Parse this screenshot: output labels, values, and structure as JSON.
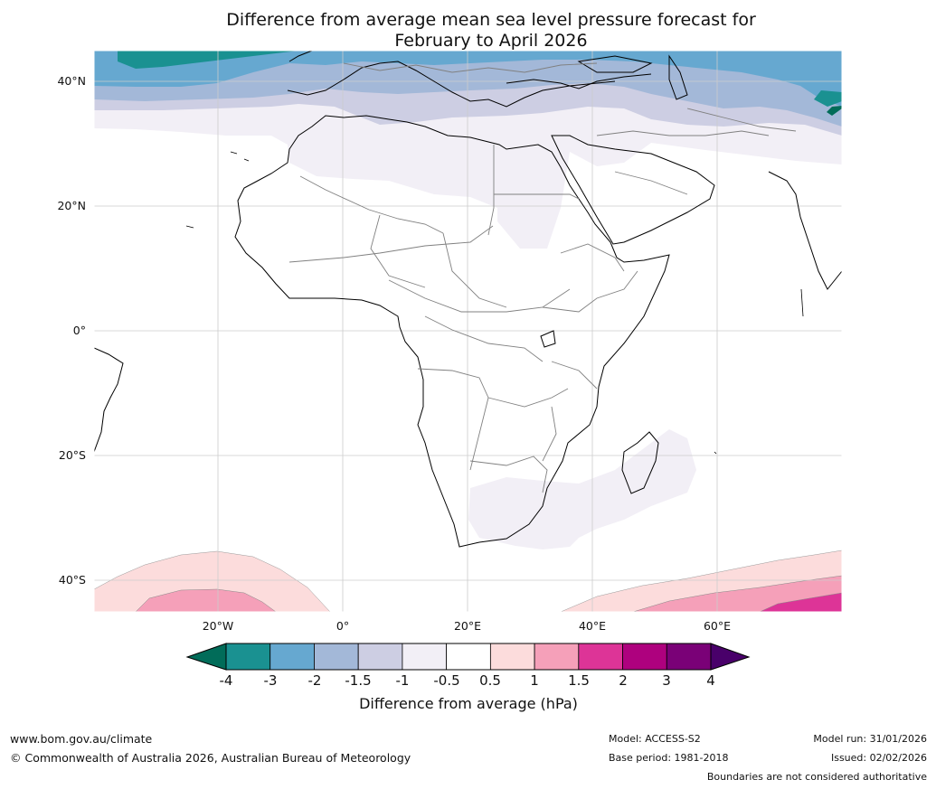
{
  "title": {
    "line1": "Difference from average mean sea level pressure forecast for",
    "line2": "February to April 2026"
  },
  "axes": {
    "lat_labels": [
      "40°N",
      "20°N",
      "0°",
      "20°S",
      "40°S"
    ],
    "lon_labels": [
      "20°W",
      "0°",
      "20°E",
      "40°E",
      "60°E"
    ]
  },
  "colorbar": {
    "label": "Difference from average (hPa)",
    "ticks": [
      "-4",
      "-3",
      "-2",
      "-1.5",
      "-1",
      "-0.5",
      "0.5",
      "1",
      "1.5",
      "2",
      "3",
      "4"
    ],
    "colors": [
      "#1a9191",
      "#66a8d0",
      "#a3b8d8",
      "#cdcee3",
      "#f2eff6",
      "#ffffff",
      "#fcdcdc",
      "#f5a0b9",
      "#dd3497",
      "#ae017e",
      "#7a0177"
    ],
    "under_color": "#016c59",
    "over_color": "#49006a"
  },
  "footer": {
    "url": "www.bom.gov.au/climate",
    "copyright": "© Commonwealth of Australia 2026, Australian Bureau of Meteorology",
    "model": "Model: ACCESS-S2",
    "base_period": "Base period: 1981-2018",
    "model_run": "Model run: 31/01/2026",
    "issued": "Issued: 02/02/2026",
    "disclaimer": "Boundaries are not considered authoritative"
  }
}
